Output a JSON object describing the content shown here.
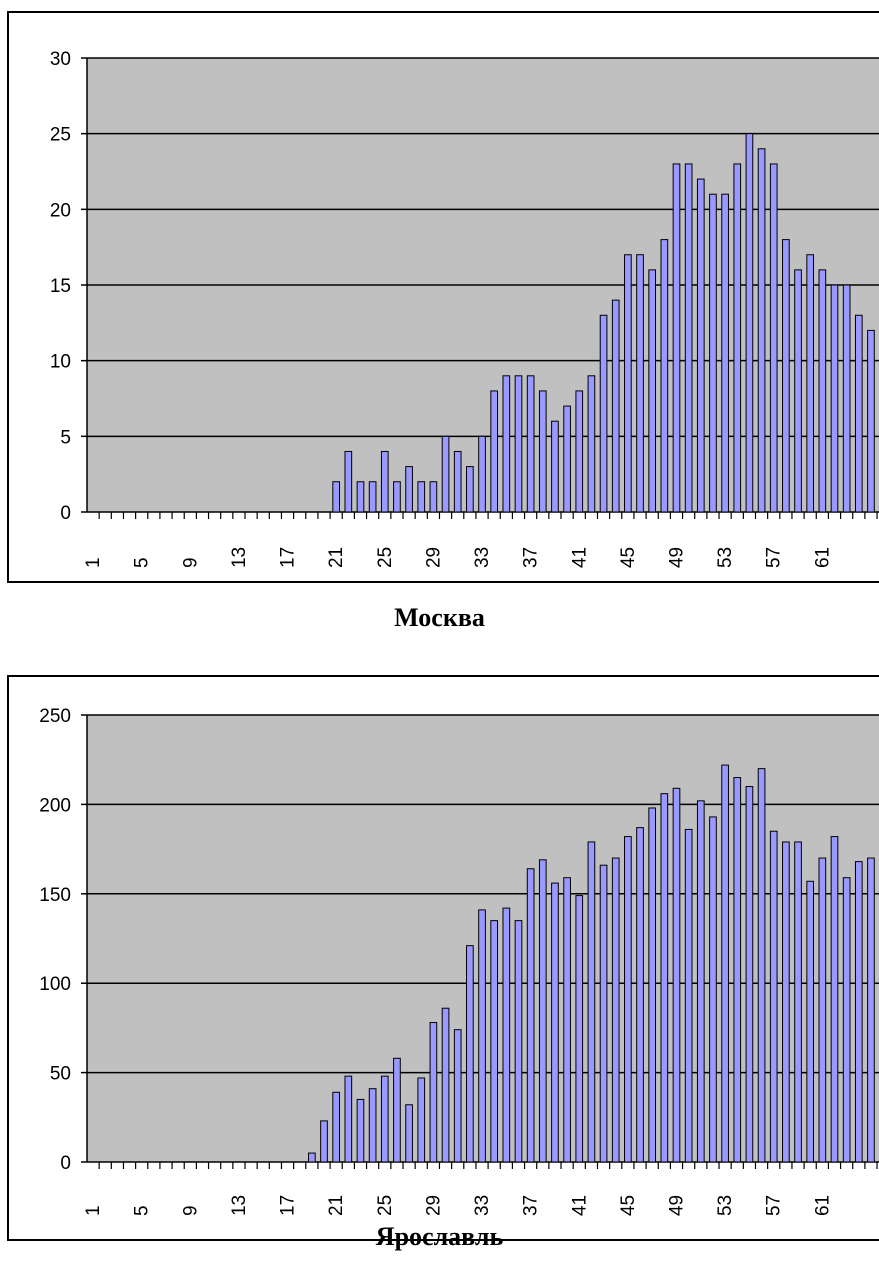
{
  "chart_data": [
    {
      "type": "bar",
      "title": "",
      "caption": "Москва",
      "xlabel": "",
      "ylabel": "",
      "ylim": [
        0,
        30
      ],
      "yticks": [
        0,
        5,
        10,
        15,
        20,
        25,
        30
      ],
      "xtick_labels": [
        "1",
        "5",
        "9",
        "13",
        "17",
        "21",
        "25",
        "29",
        "33",
        "37",
        "41",
        "45",
        "49",
        "53",
        "57",
        "61"
      ],
      "grid": true,
      "legend": "none",
      "colors": {
        "bar": "#9999ff",
        "plot_bg": "#c0c0c0",
        "grid": "#000000"
      },
      "categories": [
        1,
        2,
        3,
        4,
        5,
        6,
        7,
        8,
        9,
        10,
        11,
        12,
        13,
        14,
        15,
        16,
        17,
        18,
        19,
        20,
        21,
        22,
        23,
        24,
        25,
        26,
        27,
        28,
        29,
        30,
        31,
        32,
        33,
        34,
        35,
        36,
        37,
        38,
        39,
        40,
        41,
        42,
        43,
        44,
        45,
        46,
        47,
        48,
        49,
        50,
        51,
        52,
        53,
        54,
        55,
        56,
        57,
        58,
        59,
        60,
        61,
        62,
        63,
        64,
        65
      ],
      "values": [
        0,
        0,
        0,
        0,
        0,
        0,
        0,
        0,
        0,
        0,
        0,
        0,
        0,
        0,
        0,
        0,
        0,
        0,
        0,
        0,
        2,
        4,
        2,
        2,
        4,
        2,
        3,
        2,
        2,
        5,
        4,
        3,
        5,
        8,
        9,
        9,
        9,
        8,
        6,
        7,
        8,
        9,
        13,
        14,
        17,
        17,
        16,
        18,
        23,
        23,
        22,
        21,
        21,
        23,
        25,
        24,
        23,
        18,
        16,
        17,
        16,
        15,
        15,
        13,
        12
      ]
    },
    {
      "type": "bar",
      "title": "",
      "caption": "Ярославль",
      "xlabel": "",
      "ylabel": "",
      "ylim": [
        0,
        250
      ],
      "yticks": [
        0,
        50,
        100,
        150,
        200,
        250
      ],
      "xtick_labels": [
        "1",
        "5",
        "9",
        "13",
        "17",
        "21",
        "25",
        "29",
        "33",
        "37",
        "41",
        "45",
        "49",
        "53",
        "57",
        "61"
      ],
      "grid": true,
      "legend": "none",
      "colors": {
        "bar": "#9999ff",
        "plot_bg": "#c0c0c0",
        "grid": "#000000"
      },
      "categories": [
        1,
        2,
        3,
        4,
        5,
        6,
        7,
        8,
        9,
        10,
        11,
        12,
        13,
        14,
        15,
        16,
        17,
        18,
        19,
        20,
        21,
        22,
        23,
        24,
        25,
        26,
        27,
        28,
        29,
        30,
        31,
        32,
        33,
        34,
        35,
        36,
        37,
        38,
        39,
        40,
        41,
        42,
        43,
        44,
        45,
        46,
        47,
        48,
        49,
        50,
        51,
        52,
        53,
        54,
        55,
        56,
        57,
        58,
        59,
        60,
        61,
        62,
        63,
        64,
        65
      ],
      "values": [
        0,
        0,
        0,
        0,
        0,
        0,
        0,
        0,
        0,
        0,
        0,
        0,
        0,
        0,
        0,
        0,
        0,
        0,
        5,
        23,
        39,
        48,
        35,
        41,
        48,
        58,
        32,
        47,
        78,
        86,
        74,
        121,
        141,
        135,
        142,
        135,
        164,
        169,
        156,
        159,
        149,
        179,
        166,
        170,
        182,
        187,
        198,
        206,
        209,
        186,
        202,
        193,
        222,
        215,
        210,
        220,
        185,
        179,
        179,
        157,
        170,
        182,
        159,
        168,
        170
      ]
    }
  ]
}
